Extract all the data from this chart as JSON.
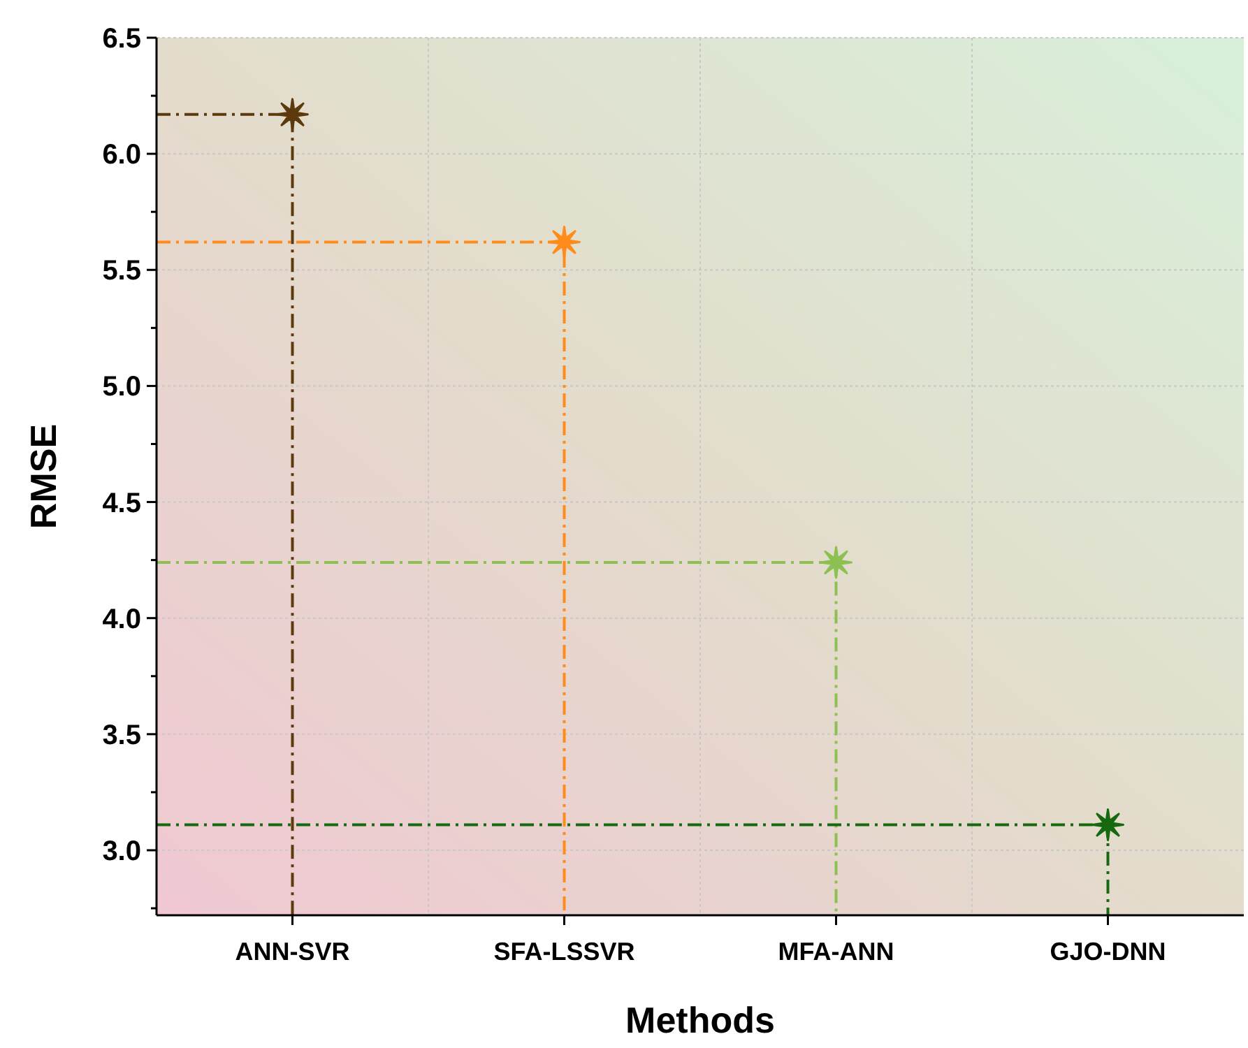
{
  "chart_data": {
    "type": "lollipop",
    "xlabel": "Methods",
    "ylabel": "RMSE",
    "categories": [
      "ANN-SVR",
      "SFA-LSSVR",
      "MFA-ANN",
      "GJO-DNN"
    ],
    "values": [
      6.17,
      5.62,
      4.24,
      3.11
    ],
    "colors": [
      "#5c3a0e",
      "#ff8c1a",
      "#8cc152",
      "#16690f"
    ],
    "ylim": [
      2.72,
      6.5
    ],
    "yticks": [
      {
        "value": 2.75,
        "label": null
      },
      {
        "value": 3,
        "label": "3.0"
      },
      {
        "value": 3.25,
        "label": null
      },
      {
        "value": 3.5,
        "label": "3.5"
      },
      {
        "value": 3.75,
        "label": null
      },
      {
        "value": 4,
        "label": "4.0"
      },
      {
        "value": 4.25,
        "label": null
      },
      {
        "value": 4.5,
        "label": "4.5"
      },
      {
        "value": 4.75,
        "label": null
      },
      {
        "value": 5,
        "label": "5.0"
      },
      {
        "value": 5.25,
        "label": null
      },
      {
        "value": 5.5,
        "label": "5.5"
      },
      {
        "value": 5.75,
        "label": null
      },
      {
        "value": 6,
        "label": "6.0"
      },
      {
        "value": 6.25,
        "label": null
      },
      {
        "value": 6.5,
        "label": "6.5"
      }
    ],
    "grid": true,
    "marker": "star",
    "line_style": "dashed"
  }
}
